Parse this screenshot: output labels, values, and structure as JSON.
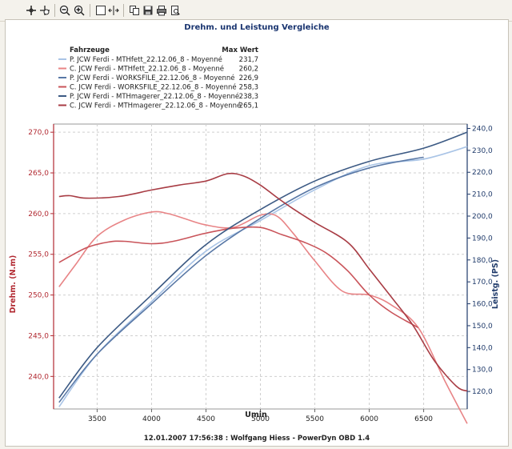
{
  "toolbar": {
    "icons": [
      "crosshair-icon",
      "zoom-pan-icon",
      "zoom-out-icon",
      "zoom-in-icon",
      "select-box-icon",
      "fit-width-icon",
      "copy-icon",
      "save-icon",
      "print-icon",
      "print-preview-icon"
    ]
  },
  "chart_data": {
    "type": "line",
    "title": "Drehm. und Leistung Vergleiche",
    "footer": "12.01.2007 17:56:38 : Wolfgang Hiess - PowerDyn OBD 1.4",
    "xlabel": "Umin",
    "ylabel_left": "Drehm. (N.m)",
    "ylabel_right": "Leistg. (PS)",
    "xlim": [
      3100,
      6900
    ],
    "ylim_left": [
      236,
      271
    ],
    "ylim_right": [
      112,
      242
    ],
    "x_ticks": [
      3500,
      4000,
      4500,
      5000,
      5500,
      6000,
      6500
    ],
    "y_ticks_left": [
      240,
      245,
      250,
      255,
      260,
      265,
      270
    ],
    "y_ticks_right": [
      120,
      130,
      140,
      150,
      160,
      170,
      180,
      190,
      200,
      210,
      220,
      230,
      240
    ],
    "y_tick_labels_left": [
      "240,0",
      "245,0",
      "250,0",
      "255,0",
      "260,0",
      "265,0",
      "270,0"
    ],
    "y_tick_labels_right": [
      "120,0",
      "130,0",
      "140,0",
      "150,0",
      "160,0",
      "170,0",
      "180,0",
      "190,0",
      "200,0",
      "210,0",
      "220,0",
      "230,0",
      "240,0"
    ],
    "grid": true,
    "legend": {
      "header_name": "Fahrzeuge",
      "header_value": "Max Wert",
      "placement": "top-left"
    },
    "series": [
      {
        "name": "P. JCW Ferdi - MTHfett_22.12.06_8 - Moyenné",
        "max": "231,7",
        "axis": "right",
        "color": "#a9c4e6",
        "x": [
          3150,
          3500,
          4000,
          4500,
          5000,
          5500,
          6000,
          6500,
          6900
        ],
        "y": [
          113,
          137,
          161,
          184,
          198,
          212,
          223,
          226,
          231.7
        ]
      },
      {
        "name": "C. JCW Ferdi - MTHfett_22.12.06_8 - Moyenné",
        "max": "260,2",
        "axis": "left",
        "color": "#e88486",
        "x": [
          3150,
          3300,
          3500,
          3750,
          4000,
          4150,
          4300,
          4500,
          4750,
          5000,
          5150,
          5300,
          5500,
          5750,
          6000,
          6200,
          6450,
          6700,
          6900
        ],
        "y": [
          251,
          253.7,
          257.2,
          259.2,
          260.2,
          260,
          259.4,
          258.6,
          258.3,
          259.8,
          259.7,
          257.6,
          254.2,
          250.5,
          250,
          248.8,
          246,
          239.3,
          234.2
        ]
      },
      {
        "name": "P. JCW Ferdi - WORKSFILE_22.12.06_8 - Moyenné",
        "max": "226,9",
        "axis": "right",
        "color": "#5978a6",
        "x": [
          3150,
          3500,
          4000,
          4500,
          5000,
          5500,
          6000,
          6500
        ],
        "y": [
          115,
          137,
          160,
          182,
          199,
          213,
          222,
          226.9
        ]
      },
      {
        "name": "C. JCW Ferdi - WORKSFILE_22.12.06_8 - Moyenné",
        "max": "258,3",
        "axis": "left",
        "color": "#c9545a",
        "x": [
          3150,
          3400,
          3600,
          3750,
          4000,
          4200,
          4500,
          4750,
          5000,
          5200,
          5400,
          5600,
          5800,
          6000,
          6200,
          6450
        ],
        "y": [
          254,
          255.8,
          256.5,
          256.6,
          256.3,
          256.6,
          257.6,
          258.2,
          258.3,
          257.4,
          256.5,
          255.2,
          253,
          250,
          247.9,
          246
        ]
      },
      {
        "name": "P. JCW Ferdi - MTHmagerer_22.12.06_8 - Moyenné",
        "max": "238,3",
        "axis": "right",
        "color": "#3c5a84",
        "x": [
          3150,
          3500,
          4000,
          4500,
          5000,
          5500,
          6000,
          6500,
          6900
        ],
        "y": [
          117,
          140,
          164,
          187,
          203,
          216,
          225,
          231,
          238.3
        ]
      },
      {
        "name": "C. JCW Ferdi - MTHmagerer_22.12.06_8 - Moyenné",
        "max": "265,1",
        "axis": "left",
        "color": "#a83c44",
        "x": [
          3150,
          3250,
          3400,
          3700,
          4000,
          4250,
          4500,
          4700,
          4850,
          5000,
          5150,
          5300,
          5500,
          5800,
          6000,
          6200,
          6400,
          6600,
          6800,
          6900
        ],
        "y": [
          262.1,
          262.2,
          261.9,
          262.1,
          262.9,
          263.5,
          264,
          264.9,
          264.6,
          263.5,
          262,
          260.6,
          258.9,
          256.5,
          253.2,
          249.8,
          246.3,
          241.9,
          238.8,
          238.2
        ]
      }
    ]
  }
}
